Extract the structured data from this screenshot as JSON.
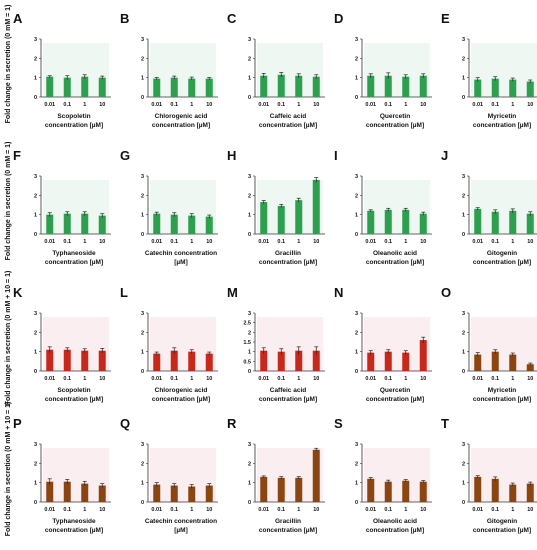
{
  "figure": {
    "row_ylabels": [
      "Fold change in secretion (0 mM = 1)",
      "Fold change in secretion (0 mM = 1)",
      "Fold change in secretion (0 mM + 10 = 1)",
      "Fold change in secretion (0 mM + 10 = 1)"
    ],
    "colors": {
      "green": "#2e9e4f",
      "red": "#c8281c",
      "brown": "#8b4513"
    }
  },
  "chart_data": [
    {
      "type": "bar",
      "panel": "A",
      "xlabel": "Scopoletin concentration [µM]",
      "categories": [
        "0.01",
        "0.1",
        "1",
        "10"
      ],
      "values": [
        1.05,
        1.0,
        1.05,
        1.0
      ],
      "errors": [
        0.05,
        0.1,
        0.1,
        0.08
      ],
      "ylim": [
        0,
        3
      ],
      "yticks": [
        "0",
        "1",
        "2",
        "3"
      ],
      "color": "green"
    },
    {
      "type": "bar",
      "panel": "B",
      "xlabel": "Chlorogenic acid concentration [µM]",
      "categories": [
        "0.01",
        "0.1",
        "1",
        "10"
      ],
      "values": [
        0.95,
        1.0,
        0.95,
        0.95
      ],
      "errors": [
        0.06,
        0.08,
        0.08,
        0.06
      ],
      "ylim": [
        0,
        3
      ],
      "yticks": [
        "0",
        "1",
        "2",
        "3"
      ],
      "color": "green"
    },
    {
      "type": "bar",
      "panel": "C",
      "xlabel": "Caffeic acid concentration [µM]",
      "categories": [
        "0.01",
        "0.1",
        "1",
        "10"
      ],
      "values": [
        1.1,
        1.15,
        1.1,
        1.05
      ],
      "errors": [
        0.12,
        0.12,
        0.1,
        0.1
      ],
      "ylim": [
        0,
        3
      ],
      "yticks": [
        "0",
        "1",
        "2",
        "3"
      ],
      "color": "green"
    },
    {
      "type": "bar",
      "panel": "D",
      "xlabel": "Quercetin concentration [µM]",
      "categories": [
        "0.01",
        "0.1",
        "1",
        "10"
      ],
      "values": [
        1.1,
        1.1,
        1.05,
        1.1
      ],
      "errors": [
        0.1,
        0.15,
        0.1,
        0.1
      ],
      "ylim": [
        0,
        3
      ],
      "yticks": [
        "0",
        "1",
        "2",
        "3"
      ],
      "color": "green"
    },
    {
      "type": "bar",
      "panel": "E",
      "xlabel": "Myricetin concentration [µM]",
      "categories": [
        "0.01",
        "0.1",
        "1",
        "10"
      ],
      "values": [
        0.9,
        0.95,
        0.9,
        0.8
      ],
      "errors": [
        0.1,
        0.1,
        0.08,
        0.08
      ],
      "ylim": [
        0,
        3
      ],
      "yticks": [
        "0",
        "1",
        "2",
        "3"
      ],
      "color": "green"
    },
    {
      "type": "bar",
      "panel": "F",
      "xlabel": "Typhaneoside concentration [µM]",
      "categories": [
        "0.01",
        "0.1",
        "1",
        "10"
      ],
      "values": [
        1.0,
        1.05,
        1.05,
        0.95
      ],
      "errors": [
        0.1,
        0.1,
        0.1,
        0.1
      ],
      "ylim": [
        0,
        3
      ],
      "yticks": [
        "0",
        "1",
        "2",
        "3"
      ],
      "color": "green"
    },
    {
      "type": "bar",
      "panel": "G",
      "xlabel": "Catechin concentration [µM]",
      "categories": [
        "0.01",
        "0.1",
        "1",
        "10"
      ],
      "values": [
        1.05,
        1.0,
        0.95,
        0.9
      ],
      "errors": [
        0.08,
        0.1,
        0.1,
        0.08
      ],
      "ylim": [
        0,
        3
      ],
      "yticks": [
        "0",
        "1",
        "2",
        "3"
      ],
      "color": "green"
    },
    {
      "type": "bar",
      "panel": "H",
      "xlabel": "Gracillin concentration [µM]",
      "categories": [
        "0.01",
        "0.1",
        "1",
        "10"
      ],
      "values": [
        1.65,
        1.45,
        1.75,
        2.8
      ],
      "errors": [
        0.08,
        0.08,
        0.1,
        0.12
      ],
      "ylim": [
        0,
        3
      ],
      "yticks": [
        "0",
        "1",
        "2",
        "3"
      ],
      "color": "green"
    },
    {
      "type": "bar",
      "panel": "I",
      "xlabel": "Oleanolic acid concentration [µM]",
      "categories": [
        "0.01",
        "0.1",
        "1",
        "10"
      ],
      "values": [
        1.2,
        1.25,
        1.25,
        1.05
      ],
      "errors": [
        0.05,
        0.08,
        0.08,
        0.08
      ],
      "ylim": [
        0,
        3
      ],
      "yticks": [
        "0",
        "1",
        "2",
        "3"
      ],
      "color": "green"
    },
    {
      "type": "bar",
      "panel": "J",
      "xlabel": "Gitogenin concentration [µM]",
      "categories": [
        "0.01",
        "0.1",
        "1",
        "10"
      ],
      "values": [
        1.3,
        1.15,
        1.2,
        1.05
      ],
      "errors": [
        0.06,
        0.1,
        0.1,
        0.1
      ],
      "ylim": [
        0,
        3
      ],
      "yticks": [
        "0",
        "1",
        "2",
        "3"
      ],
      "color": "green"
    },
    {
      "type": "bar",
      "panel": "K",
      "xlabel": "Scopoletin concentration [µM]",
      "categories": [
        "0.01",
        "0.1",
        "1",
        "10"
      ],
      "values": [
        1.1,
        1.1,
        1.05,
        1.05
      ],
      "errors": [
        0.15,
        0.1,
        0.1,
        0.12
      ],
      "ylim": [
        0,
        3
      ],
      "yticks": [
        "0",
        "1",
        "2",
        "3"
      ],
      "color": "red"
    },
    {
      "type": "bar",
      "panel": "L",
      "xlabel": "Chlorogenic acid concentration [µM]",
      "categories": [
        "0.01",
        "0.1",
        "1",
        "10"
      ],
      "values": [
        0.9,
        1.05,
        1.0,
        0.9
      ],
      "errors": [
        0.08,
        0.15,
        0.1,
        0.08
      ],
      "ylim": [
        0,
        3
      ],
      "yticks": [
        "0",
        "1",
        "2",
        "3"
      ],
      "color": "red"
    },
    {
      "type": "bar",
      "panel": "M",
      "xlabel": "Caffeic acid concentration [µM]",
      "categories": [
        "0.01",
        "0.1",
        "1",
        "10"
      ],
      "values": [
        1.05,
        1.0,
        1.05,
        1.05
      ],
      "errors": [
        0.15,
        0.15,
        0.2,
        0.2
      ],
      "ylim": [
        0,
        3
      ],
      "yticks": [
        "0",
        "0.5",
        "1",
        "1.5",
        "2",
        "2.5",
        "3"
      ],
      "color": "red"
    },
    {
      "type": "bar",
      "panel": "N",
      "xlabel": "Quercetin concentration [µM]",
      "categories": [
        "0.01",
        "0.1",
        "1",
        "10"
      ],
      "values": [
        0.95,
        1.0,
        0.95,
        1.6
      ],
      "errors": [
        0.1,
        0.1,
        0.1,
        0.15
      ],
      "ylim": [
        0,
        3
      ],
      "yticks": [
        "0",
        "1",
        "2",
        "3"
      ],
      "color": "red"
    },
    {
      "type": "bar",
      "panel": "O",
      "xlabel": "Myricetin concentration [µM]",
      "categories": [
        "0.01",
        "0.1",
        "1",
        "10"
      ],
      "values": [
        0.85,
        1.0,
        0.85,
        0.35
      ],
      "errors": [
        0.1,
        0.1,
        0.08,
        0.06
      ],
      "ylim": [
        0,
        3
      ],
      "yticks": [
        "0",
        "1",
        "2",
        "3"
      ],
      "color": "brown"
    },
    {
      "type": "bar",
      "panel": "P",
      "xlabel": "Typhaneoside concentration [µM]",
      "categories": [
        "0.01",
        "0.1",
        "1",
        "10"
      ],
      "values": [
        1.05,
        1.05,
        0.95,
        0.85
      ],
      "errors": [
        0.15,
        0.12,
        0.12,
        0.1
      ],
      "ylim": [
        0,
        3
      ],
      "yticks": [
        "0",
        "1",
        "2",
        "3"
      ],
      "color": "brown"
    },
    {
      "type": "bar",
      "panel": "Q",
      "xlabel": "Catechin concentration [µM]",
      "categories": [
        "0.01",
        "0.1",
        "1",
        "10"
      ],
      "values": [
        0.9,
        0.85,
        0.8,
        0.85
      ],
      "errors": [
        0.1,
        0.1,
        0.1,
        0.1
      ],
      "ylim": [
        0,
        3
      ],
      "yticks": [
        "0",
        "1",
        "2",
        "3"
      ],
      "color": "brown"
    },
    {
      "type": "bar",
      "panel": "R",
      "xlabel": "Gracillin concentration [µM]",
      "categories": [
        "0.01",
        "0.1",
        "1",
        "10"
      ],
      "values": [
        1.3,
        1.25,
        1.25,
        2.7
      ],
      "errors": [
        0.05,
        0.06,
        0.06,
        0.08
      ],
      "ylim": [
        0,
        3
      ],
      "yticks": [
        "0",
        "1",
        "2",
        "3"
      ],
      "color": "brown"
    },
    {
      "type": "bar",
      "panel": "S",
      "xlabel": "Oleanolic acid concentration [µM]",
      "categories": [
        "0.01",
        "0.1",
        "1",
        "10"
      ],
      "values": [
        1.2,
        1.05,
        1.1,
        1.05
      ],
      "errors": [
        0.06,
        0.08,
        0.06,
        0.06
      ],
      "ylim": [
        0,
        3
      ],
      "yticks": [
        "0",
        "1",
        "2",
        "3"
      ],
      "color": "brown"
    },
    {
      "type": "bar",
      "panel": "T",
      "xlabel": "Gitogenin concentration [µM]",
      "categories": [
        "0.01",
        "0.1",
        "1",
        "10"
      ],
      "values": [
        1.3,
        1.2,
        0.9,
        0.95
      ],
      "errors": [
        0.06,
        0.1,
        0.08,
        0.08
      ],
      "ylim": [
        0,
        3
      ],
      "yticks": [
        "0",
        "1",
        "2",
        "3"
      ],
      "color": "brown"
    }
  ]
}
